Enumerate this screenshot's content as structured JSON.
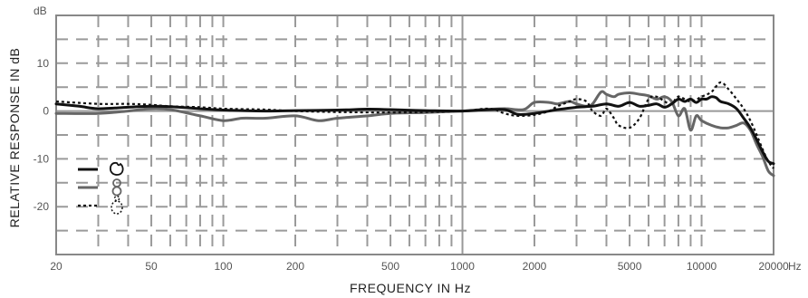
{
  "chart_data": {
    "type": "line",
    "title": "",
    "xlabel": "FREQUENCY IN Hz",
    "ylabel": "RELATIVE RESPONSE IN dB",
    "y_unit_label": "dB",
    "x_unit_label": "Hz",
    "x_scale": "log",
    "xlim": [
      20,
      20000
    ],
    "ylim": [
      -30,
      20
    ],
    "x_ticks": [
      20,
      50,
      100,
      200,
      500,
      1000,
      2000,
      5000,
      10000,
      20000
    ],
    "x_tick_labels": [
      "20",
      "50",
      "100",
      "200",
      "500",
      "1000",
      "2000",
      "5000",
      "10000",
      "20000"
    ],
    "y_ticks": [
      10,
      0,
      -10,
      -20
    ],
    "y_tick_labels": [
      "10",
      "0",
      "-10",
      "-20"
    ],
    "grid": "dashed",
    "legend_position": "left",
    "series": [
      {
        "legend_icon": "cardioid-pattern-icon",
        "color": "#111111",
        "style": "solid",
        "x": [
          20,
          25,
          30,
          40,
          50,
          60,
          80,
          100,
          150,
          200,
          300,
          400,
          500,
          700,
          1000,
          1200,
          1500,
          1700,
          2000,
          2500,
          3000,
          3500,
          4000,
          4500,
          5000,
          5500,
          6000,
          6500,
          7000,
          7500,
          8000,
          8500,
          9000,
          9500,
          10000,
          10500,
          11000,
          11500,
          12000,
          13000,
          14000,
          15000,
          16000,
          17000,
          18000,
          19000,
          20000
        ],
        "y": [
          1.5,
          1.0,
          0.5,
          0.8,
          1.0,
          0.9,
          0.5,
          0.2,
          0.0,
          0.1,
          0.2,
          0.4,
          0.3,
          0.1,
          0.0,
          0.2,
          0.3,
          -0.7,
          -0.5,
          0.3,
          0.8,
          1.0,
          1.5,
          1.0,
          1.8,
          1.0,
          1.2,
          1.5,
          0.8,
          1.5,
          2.5,
          2.0,
          2.5,
          1.8,
          2.5,
          2.5,
          3.0,
          2.8,
          2.0,
          1.5,
          0.5,
          -1.5,
          -3.5,
          -6.0,
          -8.5,
          -10.5,
          -11.0
        ]
      },
      {
        "legend_icon": "figure-eight-pattern-icon",
        "color": "#666666",
        "style": "solid",
        "x": [
          20,
          30,
          40,
          50,
          60,
          80,
          100,
          120,
          150,
          200,
          250,
          300,
          400,
          500,
          700,
          1000,
          1200,
          1500,
          1800,
          2000,
          2300,
          2500,
          2800,
          3000,
          3300,
          3500,
          3800,
          4000,
          4300,
          4500,
          5000,
          5500,
          6000,
          6500,
          7000,
          7500,
          8000,
          8500,
          9000,
          9500,
          10000,
          11000,
          12000,
          13000,
          14000,
          15000,
          16000,
          17000,
          18000,
          19000,
          20000
        ],
        "y": [
          -0.5,
          -0.5,
          0.0,
          0.5,
          0.3,
          -1.0,
          -2.0,
          -1.5,
          -1.5,
          -1.0,
          -2.0,
          -1.5,
          -1.0,
          -0.5,
          -0.3,
          0.0,
          0.3,
          0.5,
          0.3,
          1.8,
          1.8,
          1.5,
          2.0,
          1.5,
          1.0,
          1.5,
          4.0,
          3.5,
          3.0,
          3.5,
          3.8,
          3.5,
          3.2,
          2.5,
          3.0,
          2.0,
          -1.0,
          0.5,
          -4.0,
          -1.0,
          -2.0,
          -3.0,
          -3.5,
          -3.5,
          -3.0,
          -2.5,
          -4.0,
          -7.0,
          -9.5,
          -12.5,
          -13.5
        ]
      },
      {
        "legend_icon": "hypercardioid-pattern-icon",
        "color": "#111111",
        "style": "dotted",
        "x": [
          20,
          30,
          40,
          50,
          60,
          80,
          100,
          150,
          200,
          300,
          500,
          700,
          1000,
          1300,
          1500,
          1700,
          2000,
          2300,
          2500,
          2800,
          3000,
          3300,
          3500,
          3800,
          4000,
          4300,
          4500,
          5000,
          5500,
          6000,
          6500,
          7000,
          7500,
          8000,
          9000,
          10000,
          11000,
          12000,
          13000,
          14000,
          15000,
          16000,
          17000,
          18000,
          19000,
          20000
        ],
        "y": [
          2.0,
          1.5,
          1.5,
          1.3,
          1.0,
          0.8,
          0.5,
          0.3,
          0.0,
          -0.2,
          -0.3,
          -0.2,
          0.0,
          0.5,
          -0.5,
          -1.0,
          -0.8,
          0.0,
          1.0,
          2.0,
          2.5,
          2.0,
          0.0,
          -1.0,
          0.5,
          -1.5,
          -3.0,
          -3.5,
          -1.5,
          2.5,
          3.0,
          2.0,
          1.5,
          3.0,
          2.0,
          3.0,
          4.0,
          6.0,
          4.5,
          2.5,
          0.5,
          -2.0,
          -5.0,
          -8.0,
          -10.5,
          -12.0
        ]
      }
    ]
  }
}
